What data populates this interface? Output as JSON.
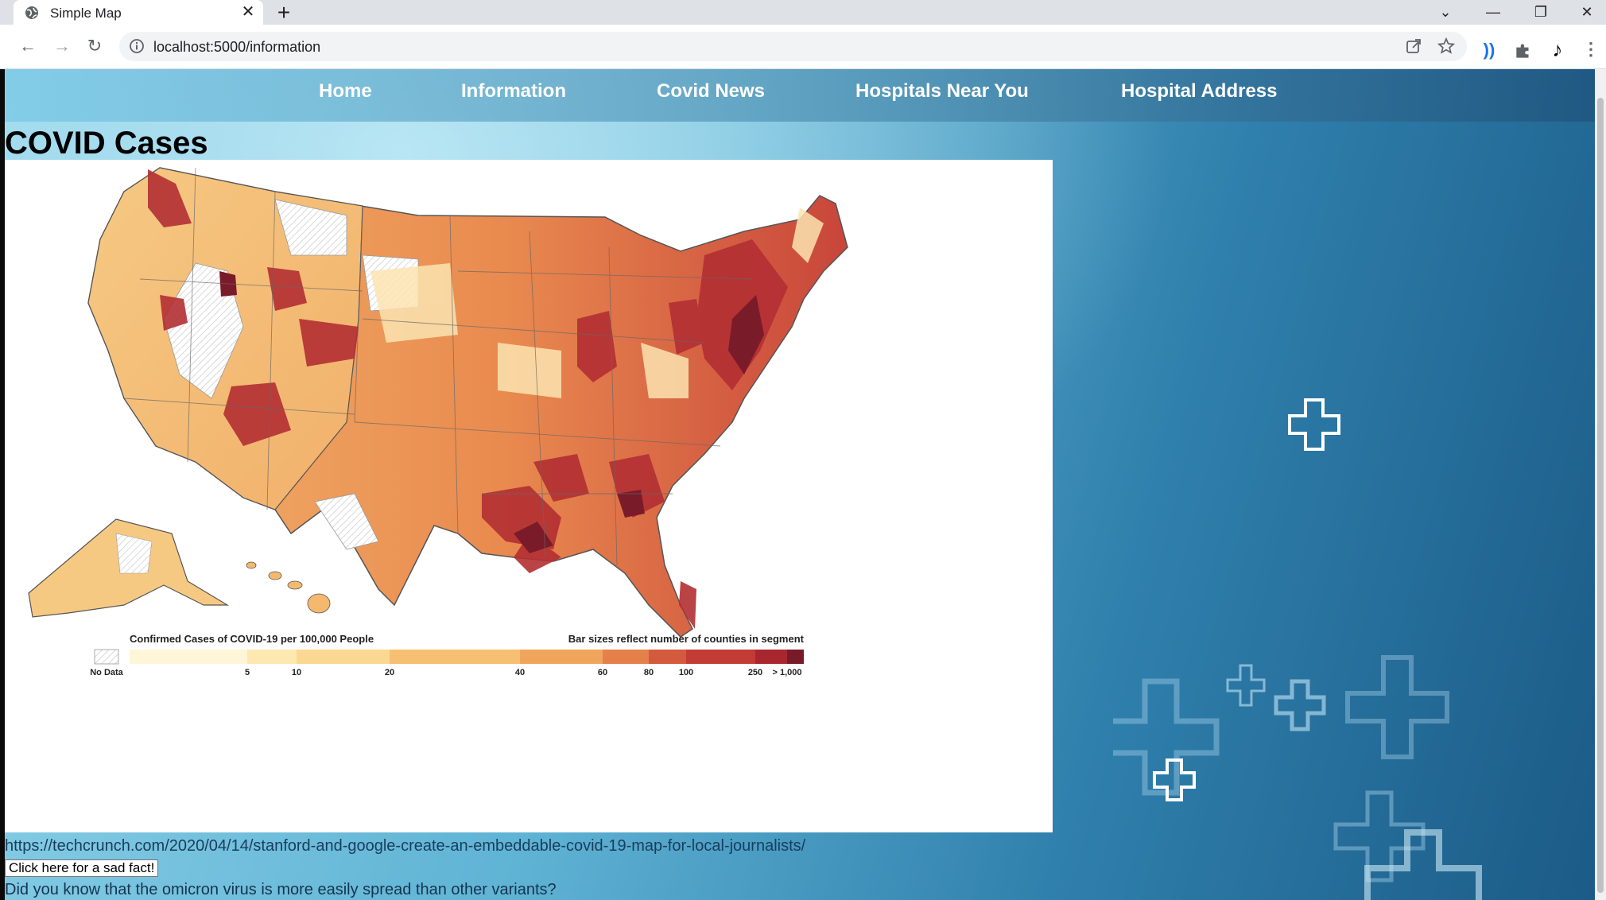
{
  "browser": {
    "tab_title": "Simple Map",
    "tab_close": "✕",
    "new_tab": "+",
    "url": "localhost:5000/information",
    "window_controls": {
      "tab_search": "⌄",
      "minimize": "—",
      "restore": "❐",
      "close": "✕"
    },
    "icons": [
      "globe-icon",
      "back-icon",
      "forward-icon",
      "reload-icon",
      "info-icon",
      "share-icon",
      "star-icon",
      "audio-extension-icon",
      "puzzle-icon",
      "music-note-icon",
      "kebab-menu-icon"
    ]
  },
  "nav": {
    "items": [
      "Home",
      "Information",
      "Covid News",
      "Hospitals Near You",
      "Hospital Address"
    ]
  },
  "page": {
    "title": "COVID Cases",
    "map": {
      "legend_title": "Confirmed Cases of COVID-19 per 100,000 People",
      "legend_note": "Bar sizes reflect number of counties in segment",
      "no_data_label": "No Data",
      "tick_labels": [
        "5",
        "10",
        "20",
        "40",
        "60",
        "80",
        "100",
        "250",
        "> 1,000"
      ],
      "legend_colors": [
        "#fff6d8",
        "#fde8b0",
        "#fbd891",
        "#f6c073",
        "#f0a55c",
        "#e5804a",
        "#d35a3d",
        "#c23b35",
        "#a8272f",
        "#781a28"
      ]
    },
    "source_link": "https://techcrunch.com/2020/04/14/stanford-and-google-create-an-embeddable-covid-19-map-for-local-journalists/",
    "fact_button": "Click here for a sad fact!",
    "fact_text": "Did you know that the omicron virus is more easily spread than other variants?"
  },
  "colors": {
    "nav_text": "#ffffff",
    "page_bg_light": "#8fd3ea",
    "page_bg_dark": "#1b5a86"
  }
}
